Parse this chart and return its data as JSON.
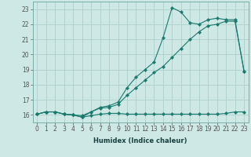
{
  "xlabel": "Humidex (Indice chaleur)",
  "bg_color": "#cde8e5",
  "grid_color": "#afd0cc",
  "line_color": "#1a7a6e",
  "xlim": [
    -0.5,
    23.5
  ],
  "ylim": [
    15.5,
    23.5
  ],
  "xticks": [
    0,
    1,
    2,
    3,
    4,
    5,
    6,
    7,
    8,
    9,
    10,
    11,
    12,
    13,
    14,
    15,
    16,
    17,
    18,
    19,
    20,
    21,
    22,
    23
  ],
  "yticks": [
    16,
    17,
    18,
    19,
    20,
    21,
    22,
    23
  ],
  "line1_x": [
    0,
    1,
    2,
    3,
    4,
    5,
    6,
    7,
    8,
    9,
    10,
    11,
    12,
    13,
    14,
    15,
    16,
    17,
    18,
    19,
    20,
    21,
    22,
    23
  ],
  "line1_y": [
    16.05,
    16.2,
    16.2,
    16.05,
    16.0,
    15.85,
    15.95,
    16.05,
    16.1,
    16.1,
    16.05,
    16.05,
    16.05,
    16.05,
    16.05,
    16.05,
    16.05,
    16.05,
    16.05,
    16.05,
    16.05,
    16.1,
    16.2,
    16.2
  ],
  "line2_x": [
    0,
    1,
    2,
    3,
    4,
    5,
    6,
    7,
    8,
    9,
    10,
    11,
    12,
    13,
    14,
    15,
    16,
    17,
    18,
    19,
    20,
    21,
    22,
    23
  ],
  "line2_y": [
    16.05,
    16.2,
    16.2,
    16.05,
    16.0,
    15.95,
    16.2,
    16.45,
    16.5,
    16.7,
    17.3,
    17.8,
    18.3,
    18.8,
    19.2,
    19.8,
    20.4,
    21.0,
    21.5,
    21.9,
    22.0,
    22.2,
    22.2,
    18.9
  ],
  "line3_x": [
    0,
    1,
    2,
    3,
    4,
    5,
    6,
    7,
    8,
    9,
    10,
    11,
    12,
    13,
    14,
    15,
    16,
    17,
    18,
    19,
    20,
    21,
    22,
    23
  ],
  "line3_y": [
    16.05,
    16.2,
    16.2,
    16.05,
    16.0,
    15.85,
    16.2,
    16.5,
    16.6,
    16.85,
    17.8,
    18.5,
    19.0,
    19.5,
    21.1,
    23.1,
    22.8,
    22.1,
    22.0,
    22.3,
    22.4,
    22.3,
    22.3,
    18.9
  ],
  "marker": "D",
  "markersize": 2.2,
  "linewidth": 0.8,
  "tick_fontsize": 5.5,
  "xlabel_fontsize": 6.0
}
